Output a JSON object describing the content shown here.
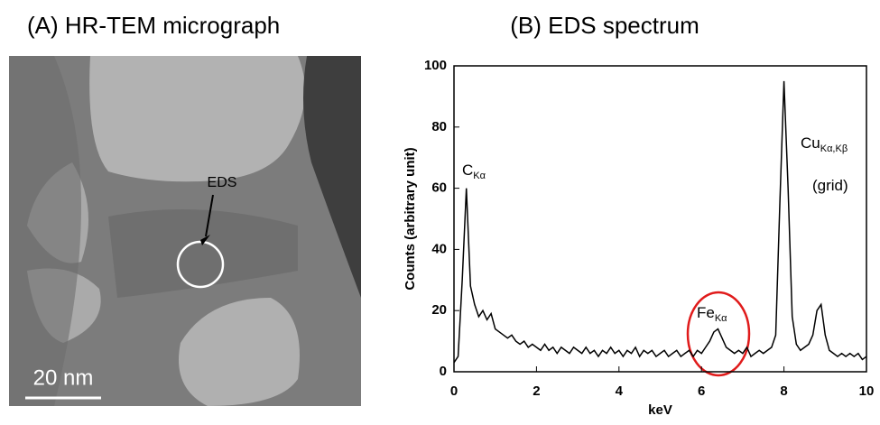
{
  "panel_a": {
    "title": "(A) HR-TEM micrograph",
    "label": "EDS",
    "scale_bar": "20 nm"
  },
  "chart_data": {
    "type": "line",
    "title": "(B) EDS spectrum",
    "x_label": "keV",
    "y_label": "Counts (arbitrary unit)",
    "x": [
      0,
      0.1,
      0.2,
      0.3,
      0.4,
      0.5,
      0.6,
      0.7,
      0.8,
      0.9,
      1,
      1.1,
      1.2,
      1.3,
      1.4,
      1.5,
      1.6,
      1.7,
      1.8,
      1.9,
      2,
      2.1,
      2.2,
      2.3,
      2.4,
      2.5,
      2.6,
      2.7,
      2.8,
      2.9,
      3,
      3.1,
      3.2,
      3.3,
      3.4,
      3.5,
      3.6,
      3.7,
      3.8,
      3.9,
      4,
      4.1,
      4.2,
      4.3,
      4.4,
      4.5,
      4.6,
      4.7,
      4.8,
      4.9,
      5,
      5.1,
      5.2,
      5.3,
      5.4,
      5.5,
      5.6,
      5.7,
      5.8,
      5.9,
      6,
      6.1,
      6.2,
      6.3,
      6.4,
      6.5,
      6.6,
      6.7,
      6.8,
      6.9,
      7,
      7.1,
      7.2,
      7.3,
      7.4,
      7.5,
      7.6,
      7.7,
      7.8,
      7.9,
      8,
      8.1,
      8.2,
      8.3,
      8.4,
      8.5,
      8.6,
      8.7,
      8.8,
      8.9,
      9,
      9.1,
      9.2,
      9.3,
      9.4,
      9.5,
      9.6,
      9.7,
      9.8,
      9.9,
      10
    ],
    "values": [
      3,
      5,
      30,
      60,
      28,
      22,
      18,
      20,
      17,
      19,
      14,
      13,
      12,
      11,
      12,
      10,
      9,
      10,
      8,
      9,
      8,
      7,
      9,
      7,
      8,
      6,
      8,
      7,
      6,
      8,
      7,
      6,
      8,
      6,
      7,
      5,
      7,
      6,
      8,
      6,
      7,
      5,
      7,
      6,
      8,
      5,
      7,
      6,
      7,
      5,
      6,
      7,
      5,
      6,
      7,
      5,
      6,
      7,
      5,
      7,
      6,
      8,
      10,
      13,
      14,
      11,
      8,
      7,
      6,
      7,
      6,
      8,
      5,
      6,
      7,
      6,
      7,
      8,
      12,
      55,
      95,
      60,
      18,
      9,
      7,
      8,
      9,
      12,
      20,
      22,
      12,
      7,
      6,
      5,
      6,
      5,
      6,
      5,
      6,
      4,
      5
    ],
    "color": "#000000",
    "xlim": [
      0,
      10
    ],
    "xticks": [
      0,
      2,
      4,
      6,
      8,
      10
    ],
    "ylim": [
      0,
      100
    ],
    "yticks": [
      0,
      20,
      40,
      60,
      80,
      100
    ],
    "annotations": [
      {
        "text": "C",
        "sub": "Kα"
      },
      {
        "text": "Fe",
        "sub": "Kα"
      },
      {
        "text": "Cu",
        "sub": "Kα,Kβ"
      },
      {
        "text": "(grid)"
      }
    ]
  }
}
